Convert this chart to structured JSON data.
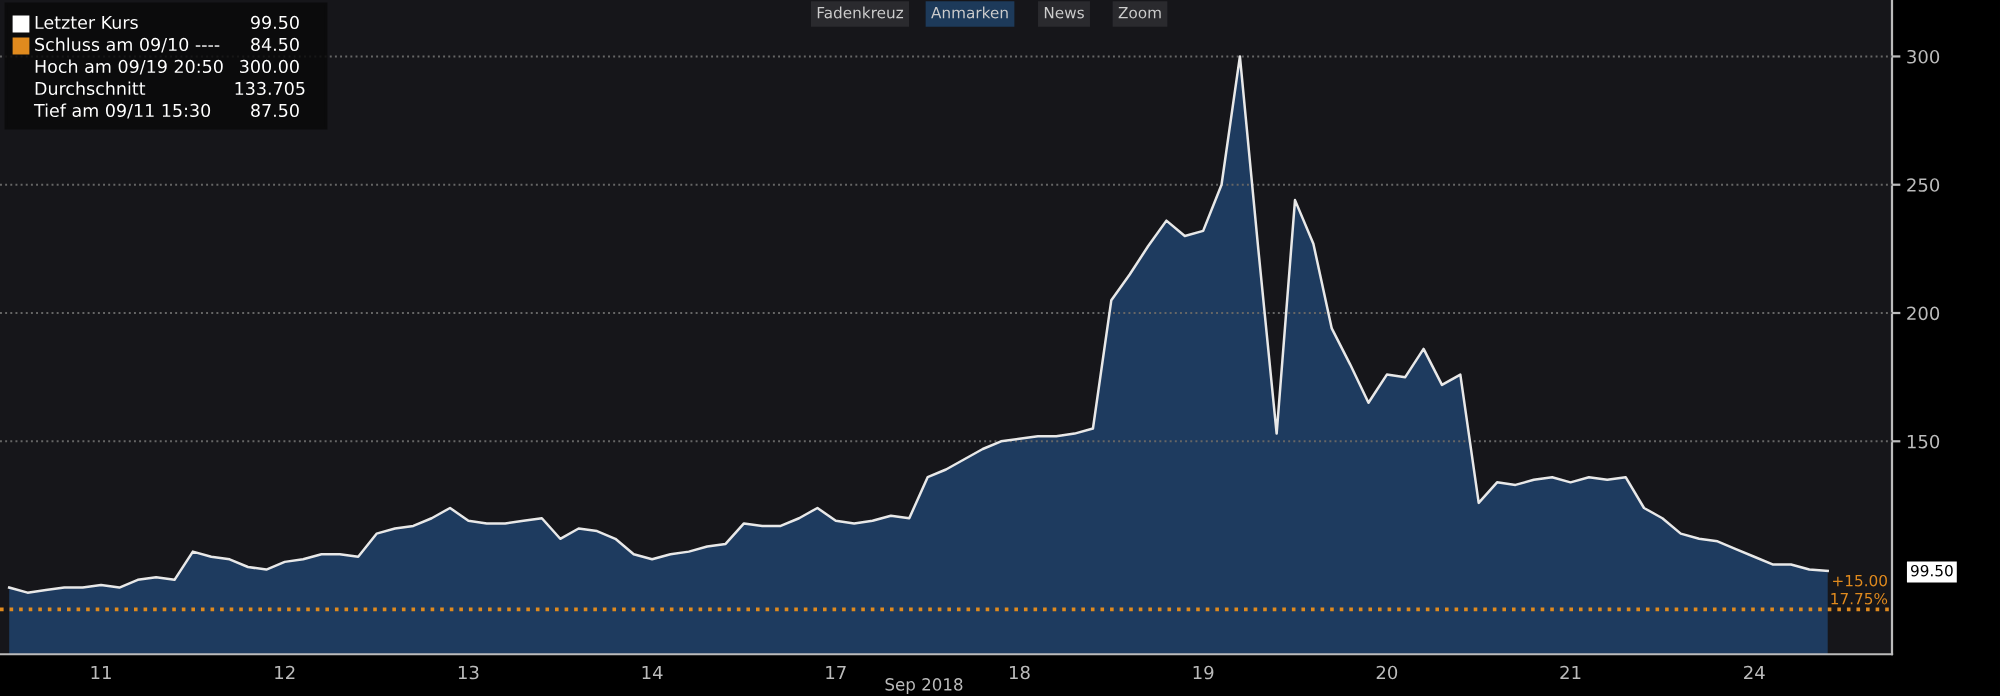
{
  "chart_data": {
    "type": "area",
    "xlabel": "Sep 2018",
    "categories": [
      null,
      null,
      null,
      null,
      null,
      "11",
      null,
      null,
      null,
      null,
      null,
      null,
      null,
      null,
      null,
      "12",
      null,
      null,
      null,
      null,
      null,
      null,
      null,
      null,
      null,
      "13",
      null,
      null,
      null,
      null,
      null,
      null,
      null,
      null,
      null,
      "14",
      null,
      null,
      null,
      null,
      null,
      null,
      null,
      null,
      null,
      "17",
      null,
      null,
      null,
      null,
      null,
      null,
      null,
      null,
      null,
      "18",
      null,
      null,
      null,
      null,
      null,
      null,
      null,
      null,
      null,
      "19",
      null,
      null,
      null,
      null,
      null,
      null,
      null,
      null,
      null,
      "20",
      null,
      null,
      null,
      null,
      null,
      null,
      null,
      null,
      null,
      "21",
      null,
      null,
      null,
      null,
      null,
      null,
      null,
      null,
      null,
      "24",
      null,
      null,
      null,
      null,
      null,
      null,
      null
    ],
    "series": [
      {
        "color": "#1f3d63",
        "values": [
          93,
          91,
          92,
          93,
          93,
          94,
          93,
          96,
          97,
          96,
          107,
          105,
          104,
          101,
          100,
          103,
          104,
          106,
          106,
          105,
          114,
          116,
          117,
          120,
          124,
          119,
          118,
          118,
          119,
          120,
          112,
          116,
          115,
          112,
          106,
          104,
          106,
          107,
          109,
          110,
          118,
          117,
          117,
          120,
          124,
          119,
          118,
          119,
          121,
          120,
          136,
          139,
          143,
          147,
          150,
          151,
          152,
          152,
          153,
          155,
          205,
          215,
          226,
          236,
          230,
          232,
          250,
          300,
          225,
          153,
          244,
          227,
          194,
          180,
          165,
          176,
          175,
          186,
          172,
          176,
          126,
          134,
          133,
          135,
          136,
          134,
          136,
          135,
          136,
          124,
          120,
          114,
          112,
          111,
          108,
          105,
          102,
          102,
          100,
          99.5,
          null,
          null,
          null
        ]
      }
    ],
    "ylim": [
      67,
      322
    ],
    "yticks": [
      150,
      200,
      250,
      300
    ],
    "grid": "y",
    "ref_lines": [
      {
        "axis": "y",
        "value": 84.5,
        "color": "#e08a1e",
        "line_style": "dotted"
      }
    ],
    "annotations": [
      "Letzter Kurs",
      "99.50",
      "Schluss am 09/10 ----",
      "84.50",
      "Hoch am 09/19 20:50",
      "300.00",
      "Durchschnitt",
      "133.705",
      "Tief am 09/11 15:30",
      "87.50",
      "Fadenkreuz",
      "Anmarken",
      "News",
      "Zoom",
      "+15.00",
      "17.75%",
      "99.50"
    ]
  }
}
